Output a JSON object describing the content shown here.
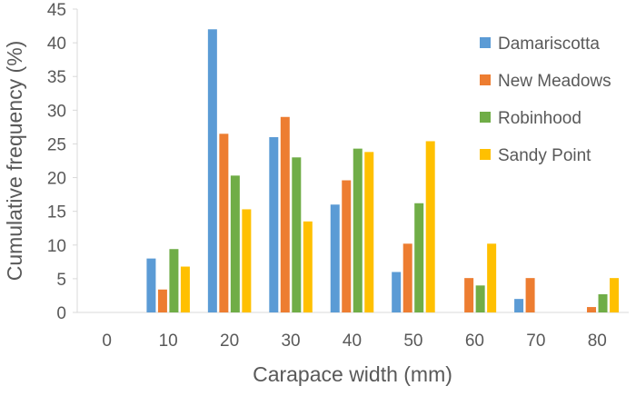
{
  "chart_data": {
    "type": "bar",
    "title": "",
    "xlabel": "Carapace width (mm)",
    "ylabel": "Cumulative frequency (%)",
    "ylim": [
      0,
      45
    ],
    "yticks": [
      "0",
      "5",
      "10",
      "15",
      "20",
      "25",
      "30",
      "35",
      "40",
      "45"
    ],
    "categories": [
      "0",
      "10",
      "20",
      "30",
      "40",
      "50",
      "60",
      "70",
      "80"
    ],
    "grid": false,
    "legend_position": "top-right",
    "series": [
      {
        "name": "Damariscotta",
        "color": "#5B9BD5",
        "values": [
          0,
          8,
          42,
          26,
          16,
          6,
          0,
          2,
          0
        ]
      },
      {
        "name": "New Meadows",
        "color": "#ED7D31",
        "values": [
          0,
          3.4,
          26.5,
          29,
          19.6,
          10.2,
          5.1,
          5.1,
          0.8
        ]
      },
      {
        "name": "Robinhood",
        "color": "#70AD47",
        "values": [
          0,
          9.4,
          20.3,
          23,
          24.3,
          16.2,
          4,
          0,
          2.7
        ]
      },
      {
        "name": "Sandy Point",
        "color": "#FFC000",
        "values": [
          0,
          6.8,
          15.3,
          13.5,
          23.8,
          25.4,
          10.2,
          0,
          5.1
        ]
      }
    ]
  }
}
